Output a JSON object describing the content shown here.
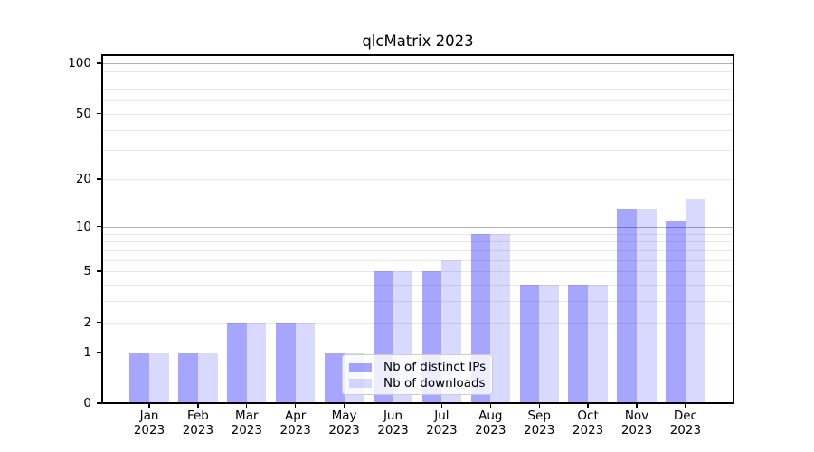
{
  "title": "qlcMatrix 2023",
  "chart_data": {
    "type": "bar",
    "title": "qlcMatrix 2023",
    "categories": [
      "Jan 2023",
      "Feb 2023",
      "Mar 2023",
      "Apr 2023",
      "May 2023",
      "Jun 2023",
      "Jul 2023",
      "Aug 2023",
      "Sep 2023",
      "Oct 2023",
      "Nov 2023",
      "Dec 2023"
    ],
    "x_tick_lines": [
      [
        "Jan",
        "2023"
      ],
      [
        "Feb",
        "2023"
      ],
      [
        "Mar",
        "2023"
      ],
      [
        "Apr",
        "2023"
      ],
      [
        "May",
        "2023"
      ],
      [
        "Jun",
        "2023"
      ],
      [
        "Jul",
        "2023"
      ],
      [
        "Aug",
        "2023"
      ],
      [
        "Sep",
        "2023"
      ],
      [
        "Oct",
        "2023"
      ],
      [
        "Nov",
        "2023"
      ],
      [
        "Dec",
        "2023"
      ]
    ],
    "series": [
      {
        "name": "Nb of distinct IPs",
        "color": "rgba(0,0,255,0.35)",
        "values": [
          1,
          1,
          2,
          2,
          1,
          5,
          5,
          9,
          4,
          4,
          13,
          11
        ]
      },
      {
        "name": "Nb of downloads",
        "color": "rgba(0,0,255,0.15)",
        "values": [
          1,
          1,
          2,
          2,
          1,
          5,
          6,
          9,
          4,
          4,
          13,
          15
        ]
      }
    ],
    "xlabel": "",
    "ylabel": "",
    "yscale": "log1p",
    "ylim": [
      0,
      112
    ],
    "y_tick_labels": [
      0,
      1,
      2,
      5,
      10,
      20,
      50,
      100
    ],
    "major_gridlines": [
      1,
      10,
      100
    ],
    "minor_gridlines": [
      2,
      3,
      4,
      5,
      6,
      7,
      8,
      9,
      20,
      30,
      40,
      50,
      60,
      70,
      80,
      90
    ],
    "grid": true,
    "legend_position": "lower center-left inside plot",
    "colors": {
      "bar_distinct_ips": "rgba(0,0,255,0.35)",
      "bar_downloads": "rgba(0,0,255,0.15)",
      "major_grid": "#b0b0b0",
      "minor_grid": "#e8e8e8",
      "axis": "#000000",
      "legend_border": "#cccccc"
    }
  }
}
